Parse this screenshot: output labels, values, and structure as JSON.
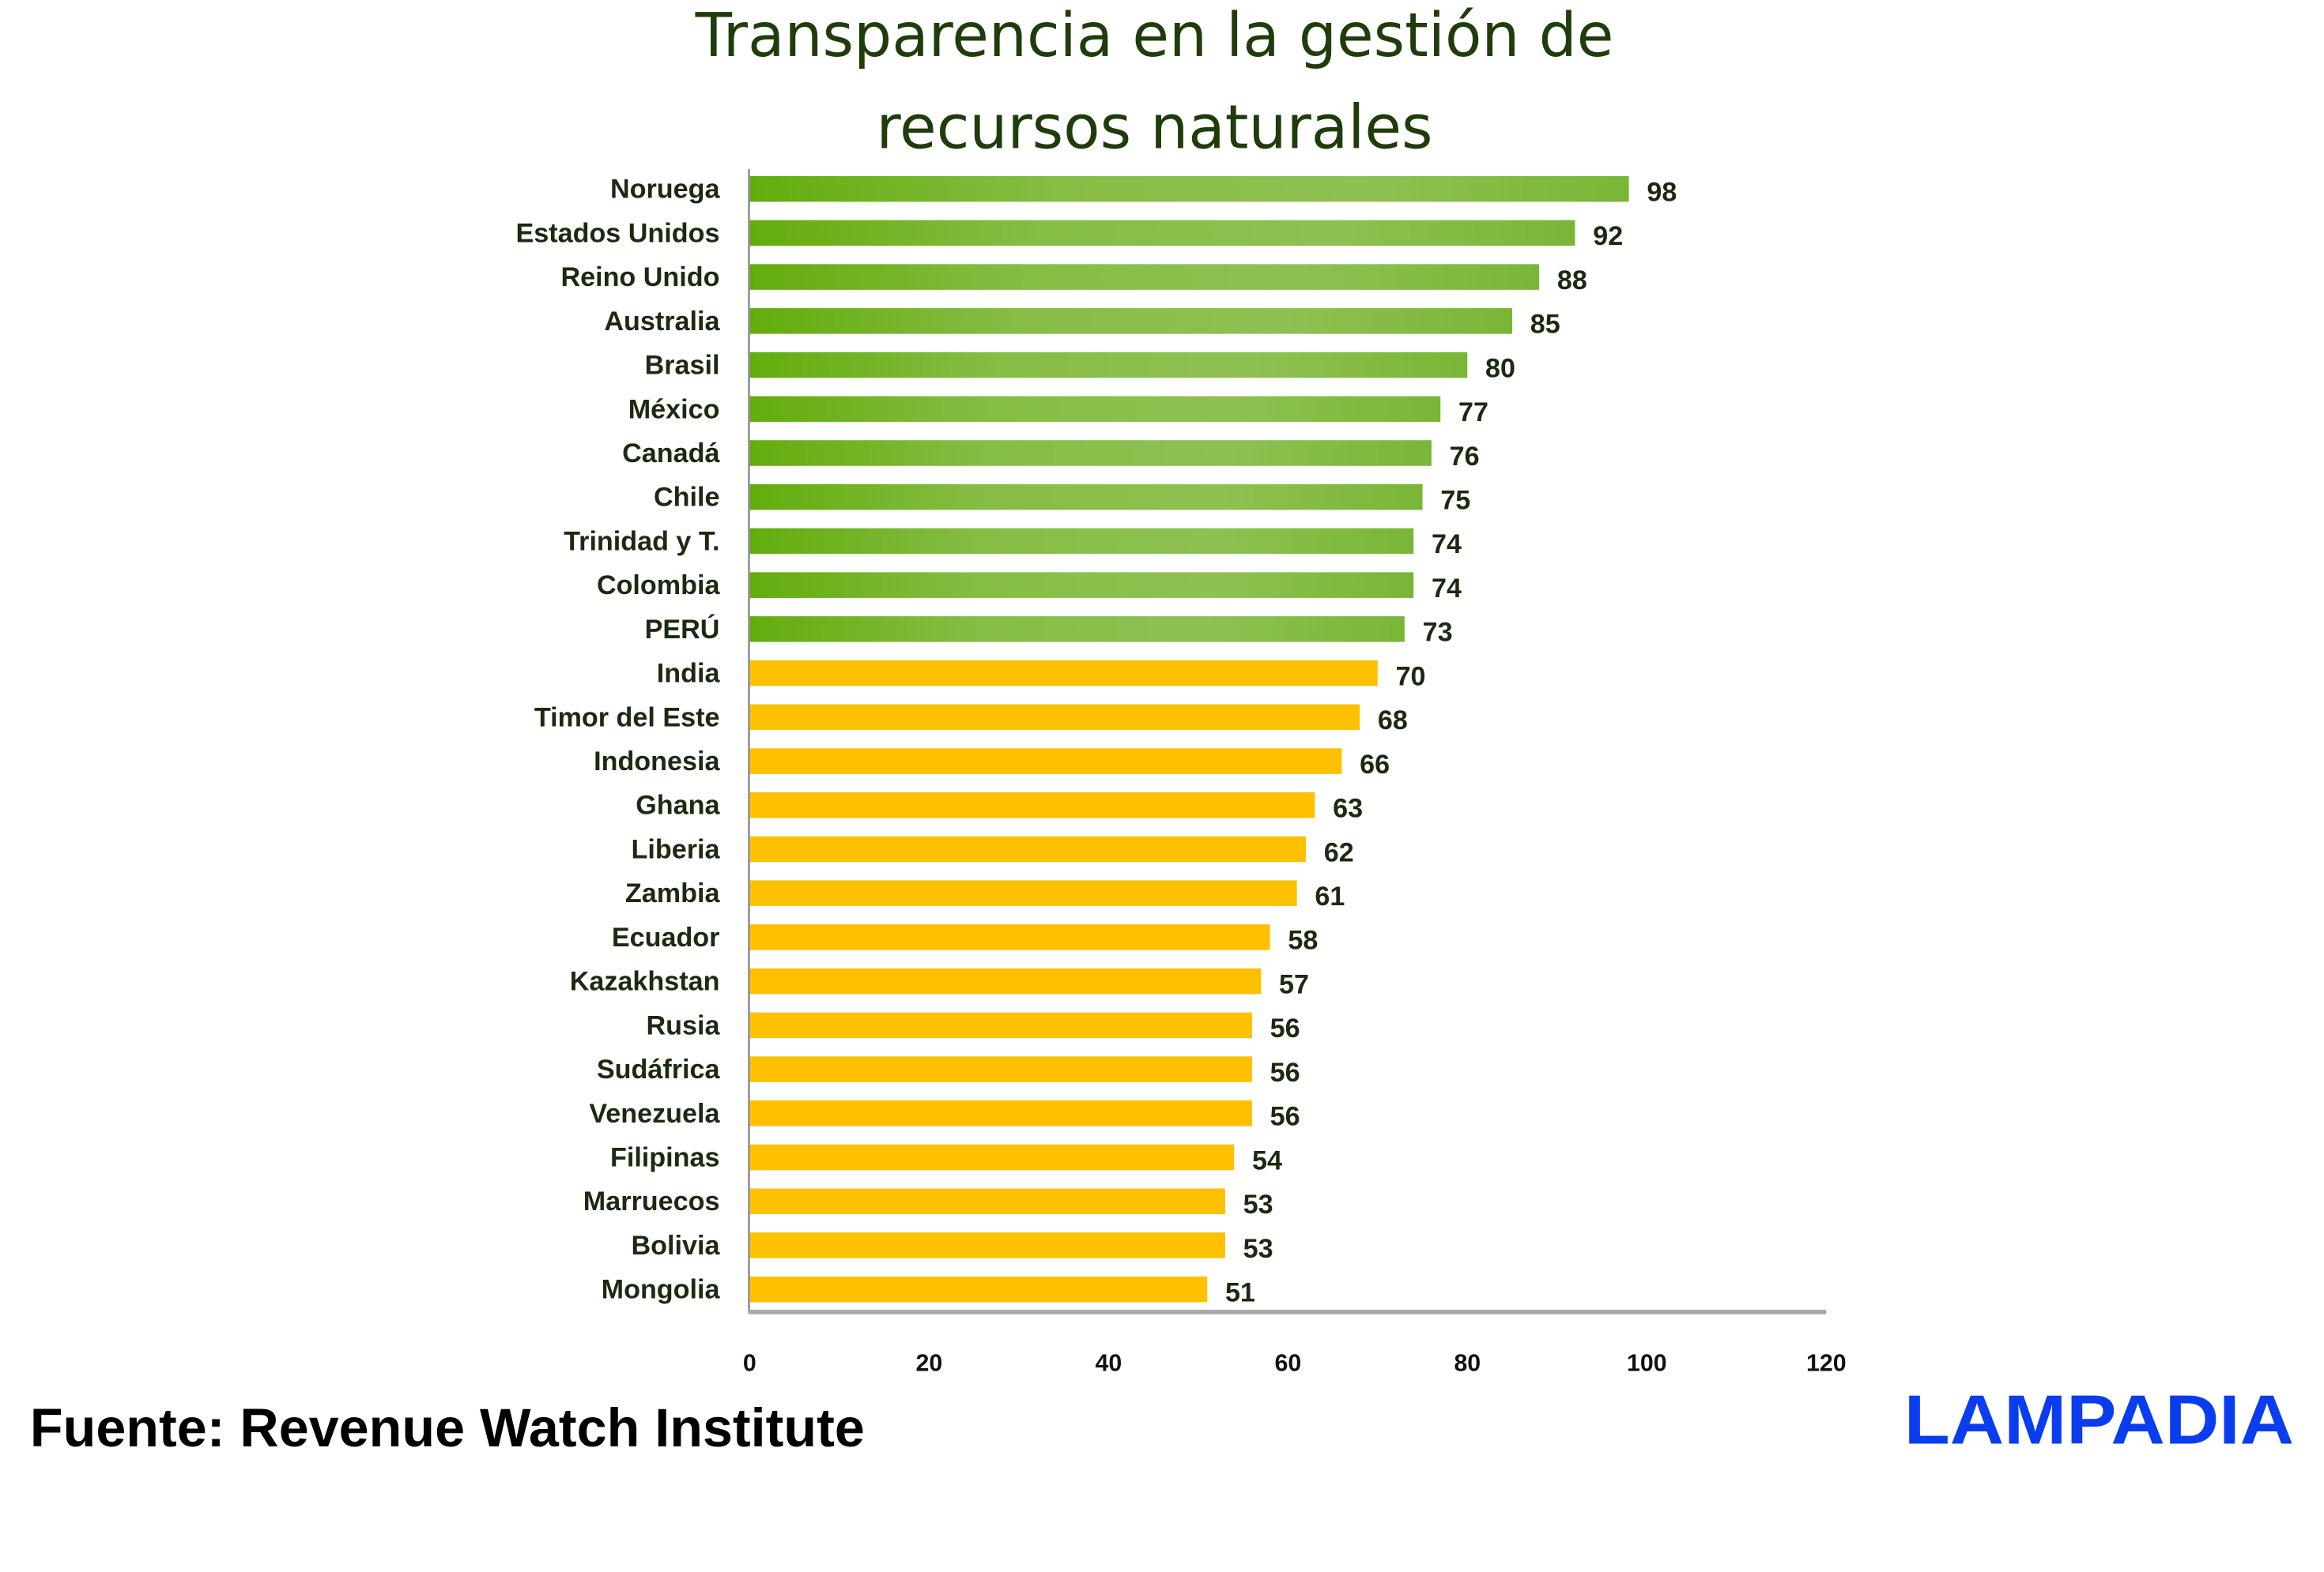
{
  "chart_data": {
    "type": "bar",
    "orientation": "horizontal",
    "title": "Transparencia en la gestión de recursos naturales",
    "title_lines": [
      "Transparencia en la gestión de",
      "recursos naturales"
    ],
    "categories": [
      "Noruega",
      "Estados Unidos",
      "Reino Unido",
      "Australia",
      "Brasil",
      "México",
      "Canadá",
      "Chile",
      "Trinidad y T.",
      "Colombia",
      "PERÚ",
      "India",
      "Timor del Este",
      "Indonesia",
      "Ghana",
      "Liberia",
      "Zambia",
      "Ecuador",
      "Kazakhstan",
      "Rusia",
      "Sudáfrica",
      "Venezuela",
      "Filipinas",
      "Marruecos",
      "Bolivia",
      "Mongolia"
    ],
    "values": [
      98,
      92,
      88,
      85,
      80,
      77,
      76,
      75,
      74,
      74,
      73,
      70,
      68,
      66,
      63,
      62,
      61,
      58,
      57,
      56,
      56,
      56,
      54,
      53,
      53,
      51
    ],
    "xlim": [
      0,
      120
    ],
    "xticks": [
      "0",
      "20",
      "40",
      "60",
      "80",
      "100",
      "120"
    ],
    "xlabel": "",
    "ylabel": "",
    "grid": false,
    "legend": "none",
    "colors": {
      "high": "#6cb31c",
      "high_light": "#92c257",
      "low": "#ffc000"
    },
    "green_count": 11
  },
  "source": "Fuente: Revenue Watch Institute",
  "logo": "LAMPADIA"
}
